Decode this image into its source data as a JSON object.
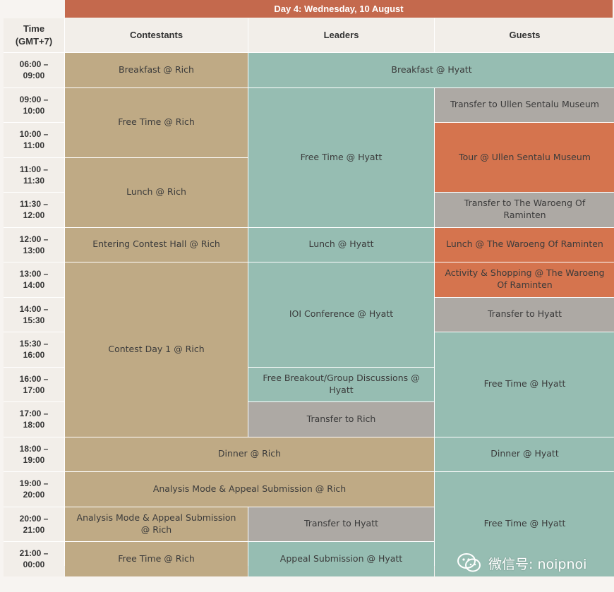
{
  "day_title": "Day 4: Wednesday, 10 August",
  "headers": {
    "time": "Time\n(GMT+7)",
    "contestants": "Contestants",
    "leaders": "Leaders",
    "guests": "Guests"
  },
  "times": [
    "06:00 –\n09:00",
    "09:00 –\n10:00",
    "10:00 –\n11:00",
    "11:00 –\n11:30",
    "11:30 –\n12:00",
    "12:00 –\n13:00",
    "13:00 –\n14:00",
    "14:00 –\n15:30",
    "15:30 –\n16:00",
    "16:00 –\n17:00",
    "17:00 –\n18:00",
    "18:00 –\n19:00",
    "19:00 –\n20:00",
    "20:00 –\n21:00",
    "21:00 –\n00:00"
  ],
  "events": {
    "breakfast_rich": "Breakfast @ Rich",
    "breakfast_hyatt": "Breakfast @ Hyatt",
    "free_time_rich_1": "Free Time @ Rich",
    "free_time_hyatt_leaders": "Free Time @ Hyatt",
    "transfer_ullen": "Transfer to Ullen Sentalu Museum",
    "tour_ullen": "Tour @ Ullen Sentalu Museum",
    "lunch_rich": "Lunch @ Rich",
    "transfer_waroeng": "Transfer to The Waroeng Of Raminten",
    "entering_contest_hall": "Entering Contest Hall @ Rich",
    "lunch_hyatt": "Lunch @ Hyatt",
    "lunch_waroeng": "Lunch @ The Waroeng Of Raminten",
    "contest_day_1": "Contest Day 1 @ Rich",
    "activity_shopping": "Activity & Shopping @ The Waroeng Of Raminten",
    "ioi_conference": "IOI Conference @ Hyatt",
    "transfer_hyatt_guests": "Transfer to Hyatt",
    "free_time_hyatt_guests_1": "Free Time @ Hyatt",
    "free_breakout": "Free Breakout/Group Discussions @ Hyatt",
    "transfer_rich": "Transfer to Rich",
    "dinner_rich": "Dinner @ Rich",
    "dinner_hyatt": "Dinner @ Hyatt",
    "analysis_mode_shared": "Analysis Mode & Appeal Submission @ Rich",
    "free_time_hyatt_guests_2": "Free Time @ Hyatt",
    "analysis_mode_contestants": "Analysis Mode & Appeal Submission @ Rich",
    "transfer_hyatt_leaders": "Transfer to Hyatt",
    "free_time_rich_2": "Free Time @ Rich",
    "appeal_submission_hyatt": "Appeal Submission @ Hyatt"
  },
  "watermark_text": "微信号: noipnoi",
  "colors": {
    "header_bar": "#c4694d",
    "contestant_tan": "#bfaa85",
    "hyatt_teal": "#96bdb2",
    "transfer_grey": "#ada9a4",
    "excursion_orange": "#d5744e"
  }
}
